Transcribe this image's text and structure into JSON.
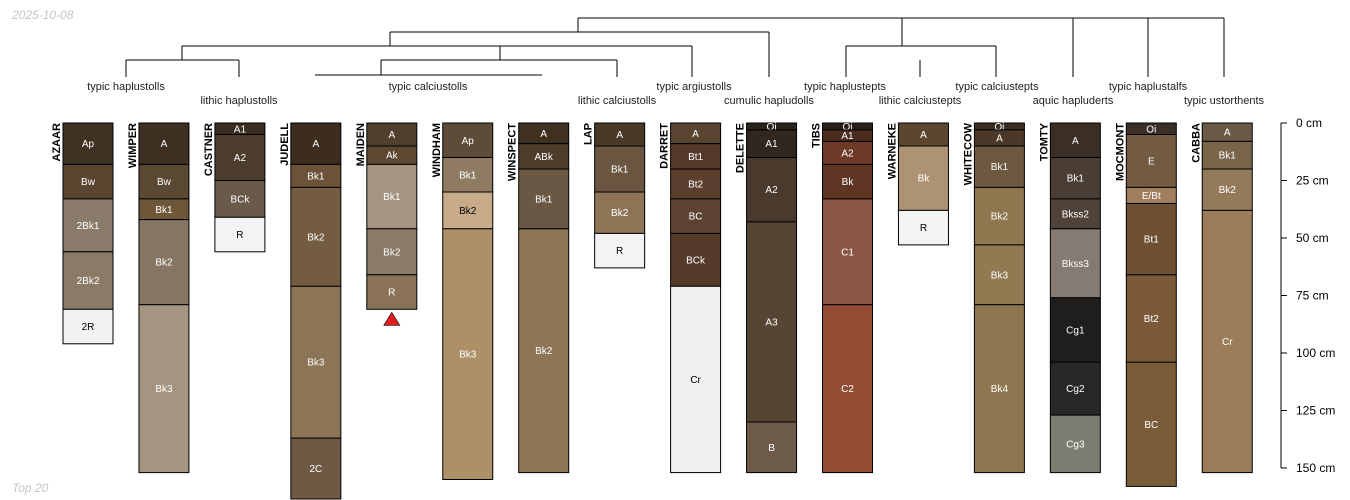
{
  "header": {
    "date": "2025-10-08",
    "footer": "Top 20"
  },
  "depth_axis": {
    "max": 150,
    "unit": "cm",
    "ticks": [
      "0 cm",
      "25 cm",
      "50 cm",
      "75 cm",
      "100 cm",
      "125 cm",
      "150 cm"
    ]
  },
  "taxa": [
    "typic haplustolls",
    "lithic haplustolls",
    "typic calciustolls",
    "lithic calciustolls",
    "typic argiustolls",
    "cumulic hapludolls",
    "typic haplustepts",
    "lithic calciustepts",
    "typic calciustepts",
    "aquic hapluderts",
    "typic haplustalfs",
    "typic ustorthents"
  ],
  "profiles": [
    {
      "name": "AZAAR",
      "horizons": [
        {
          "name": "Ap",
          "top": 0,
          "bottom": 18,
          "color": "#3f3222"
        },
        {
          "name": "Bw",
          "top": 18,
          "bottom": 33,
          "color": "#5a4630"
        },
        {
          "name": "2Bk1",
          "top": 33,
          "bottom": 56,
          "color": "#8b7b6a"
        },
        {
          "name": "2Bk2",
          "top": 56,
          "bottom": 81,
          "color": "#8a7a66"
        },
        {
          "name": "2R",
          "top": 81,
          "bottom": 96,
          "color": "#f2f2f2"
        }
      ]
    },
    {
      "name": "WIMPER",
      "horizons": [
        {
          "name": "A",
          "top": 0,
          "bottom": 18,
          "color": "#3d2f21"
        },
        {
          "name": "Bw",
          "top": 18,
          "bottom": 33,
          "color": "#5a4833"
        },
        {
          "name": "Bk1",
          "top": 33,
          "bottom": 42,
          "color": "#6e5638"
        },
        {
          "name": "Bk2",
          "top": 42,
          "bottom": 79,
          "color": "#857562"
        },
        {
          "name": "Bk3",
          "top": 79,
          "bottom": 152,
          "color": "#a49480"
        }
      ]
    },
    {
      "name": "CASTNER",
      "horizons": [
        {
          "name": "A1",
          "top": 0,
          "bottom": 5,
          "color": "#3a2c20"
        },
        {
          "name": "A2",
          "top": 5,
          "bottom": 25,
          "color": "#4c3c2c"
        },
        {
          "name": "BCk",
          "top": 25,
          "bottom": 41,
          "color": "#6a5a49"
        },
        {
          "name": "R",
          "top": 41,
          "bottom": 56,
          "color": "#f3f3f3"
        }
      ]
    },
    {
      "name": "JUDELL",
      "horizons": [
        {
          "name": "A",
          "top": 0,
          "bottom": 18,
          "color": "#3d2d1f"
        },
        {
          "name": "Bk1",
          "top": 18,
          "bottom": 28,
          "color": "#6b5238"
        },
        {
          "name": "Bk2",
          "top": 28,
          "bottom": 71,
          "color": "#745c40"
        },
        {
          "name": "Bk3",
          "top": 71,
          "bottom": 137,
          "color": "#8c7557"
        },
        {
          "name": "2C",
          "top": 137,
          "bottom": 165,
          "color": "#6e5a44"
        }
      ]
    },
    {
      "name": "MAIDEN",
      "truncated": true,
      "horizons": [
        {
          "name": "A",
          "top": 0,
          "bottom": 10,
          "color": "#503f2c"
        },
        {
          "name": "Ak",
          "top": 10,
          "bottom": 18,
          "color": "#5d4833"
        },
        {
          "name": "Bk1",
          "top": 18,
          "bottom": 46,
          "color": "#a69482"
        },
        {
          "name": "Bk2",
          "top": 46,
          "bottom": 66,
          "color": "#8c7a66"
        },
        {
          "name": "R",
          "top": 66,
          "bottom": 81,
          "color": "#8a7258"
        }
      ]
    },
    {
      "name": "WINDHAM",
      "horizons": [
        {
          "name": "Ap",
          "top": 0,
          "bottom": 15,
          "color": "#5e4c39"
        },
        {
          "name": "Bk1",
          "top": 15,
          "bottom": 30,
          "color": "#8f7b62"
        },
        {
          "name": "Bk2",
          "top": 30,
          "bottom": 46,
          "color": "#c8ac8a"
        },
        {
          "name": "Bk3",
          "top": 46,
          "bottom": 155,
          "color": "#ad9068"
        }
      ]
    },
    {
      "name": "WINSPECT",
      "horizons": [
        {
          "name": "A",
          "top": 0,
          "bottom": 9,
          "color": "#3f3020"
        },
        {
          "name": "ABk",
          "top": 9,
          "bottom": 20,
          "color": "#4e3d2b"
        },
        {
          "name": "Bk1",
          "top": 20,
          "bottom": 46,
          "color": "#6b5844"
        },
        {
          "name": "Bk2",
          "top": 46,
          "bottom": 152,
          "color": "#8d7558"
        }
      ]
    },
    {
      "name": "LAP",
      "horizons": [
        {
          "name": "A",
          "top": 0,
          "bottom": 10,
          "color": "#4a3927"
        },
        {
          "name": "Bk1",
          "top": 10,
          "bottom": 30,
          "color": "#6a5640"
        },
        {
          "name": "Bk2",
          "top": 30,
          "bottom": 48,
          "color": "#8d7457"
        },
        {
          "name": "R",
          "top": 48,
          "bottom": 63,
          "color": "#f3f3f3"
        }
      ]
    },
    {
      "name": "DARRET",
      "horizons": [
        {
          "name": "A",
          "top": 0,
          "bottom": 9,
          "color": "#5a4432"
        },
        {
          "name": "Bt1",
          "top": 9,
          "bottom": 20,
          "color": "#54392a"
        },
        {
          "name": "Bt2",
          "top": 20,
          "bottom": 33,
          "color": "#5b3e2d"
        },
        {
          "name": "BC",
          "top": 33,
          "bottom": 48,
          "color": "#5e4332"
        },
        {
          "name": "BCk",
          "top": 48,
          "bottom": 71,
          "color": "#553a2a"
        },
        {
          "name": "Cr",
          "top": 71,
          "bottom": 152,
          "color": "#f0f0f0"
        }
      ]
    },
    {
      "name": "DELETTE",
      "horizons": [
        {
          "name": "Oi",
          "top": 0,
          "bottom": 3,
          "color": "#2a241f"
        },
        {
          "name": "A1",
          "top": 3,
          "bottom": 15,
          "color": "#2f2720"
        },
        {
          "name": "A2",
          "top": 15,
          "bottom": 43,
          "color": "#4a3a2e"
        },
        {
          "name": "A3",
          "top": 43,
          "bottom": 130,
          "color": "#574534"
        },
        {
          "name": "B",
          "top": 130,
          "bottom": 152,
          "color": "#6e5a48"
        }
      ]
    },
    {
      "name": "TIBS",
      "horizons": [
        {
          "name": "Oi",
          "top": 0,
          "bottom": 3,
          "color": "#2b2018"
        },
        {
          "name": "A1",
          "top": 3,
          "bottom": 8,
          "color": "#4a2d20"
        },
        {
          "name": "A2",
          "top": 8,
          "bottom": 18,
          "color": "#6e3a28"
        },
        {
          "name": "Bk",
          "top": 18,
          "bottom": 33,
          "color": "#5e3422"
        },
        {
          "name": "C1",
          "top": 33,
          "bottom": 79,
          "color": "#8a5543"
        },
        {
          "name": "C2",
          "top": 79,
          "bottom": 152,
          "color": "#924c34"
        }
      ]
    },
    {
      "name": "WARNEKE",
      "horizons": [
        {
          "name": "A",
          "top": 0,
          "bottom": 10,
          "color": "#5c4630"
        },
        {
          "name": "Bk",
          "top": 10,
          "bottom": 38,
          "color": "#ad9374"
        },
        {
          "name": "R",
          "top": 38,
          "bottom": 53,
          "color": "#f3f3f3"
        }
      ]
    },
    {
      "name": "WHITECOW",
      "horizons": [
        {
          "name": "Oi",
          "top": 0,
          "bottom": 3,
          "color": "#3a2c20"
        },
        {
          "name": "A",
          "top": 3,
          "bottom": 10,
          "color": "#4b3828"
        },
        {
          "name": "Bk1",
          "top": 10,
          "bottom": 28,
          "color": "#6d5840"
        },
        {
          "name": "Bk2",
          "top": 28,
          "bottom": 53,
          "color": "#8f7750"
        },
        {
          "name": "Bk3",
          "top": 53,
          "bottom": 79,
          "color": "#917a52"
        },
        {
          "name": "Bk4",
          "top": 79,
          "bottom": 152,
          "color": "#8d7650"
        }
      ]
    },
    {
      "name": "TOMTY",
      "horizons": [
        {
          "name": "A",
          "top": 0,
          "bottom": 15,
          "color": "#3a2e25"
        },
        {
          "name": "Bk1",
          "top": 15,
          "bottom": 33,
          "color": "#4a3e34"
        },
        {
          "name": "Bkss2",
          "top": 33,
          "bottom": 46,
          "color": "#4f4339"
        },
        {
          "name": "Bkss3",
          "top": 46,
          "bottom": 76,
          "color": "#857b72"
        },
        {
          "name": "Cg1",
          "top": 76,
          "bottom": 104,
          "color": "#1f1e1c"
        },
        {
          "name": "Cg2",
          "top": 104,
          "bottom": 127,
          "color": "#292826"
        },
        {
          "name": "Cg3",
          "top": 127,
          "bottom": 152,
          "color": "#7c7c70"
        }
      ]
    },
    {
      "name": "MOCMONT",
      "horizons": [
        {
          "name": "Oi",
          "top": 0,
          "bottom": 5,
          "color": "#3a2f27"
        },
        {
          "name": "E",
          "top": 5,
          "bottom": 28,
          "color": "#735b42"
        },
        {
          "name": "E/Bt",
          "top": 28,
          "bottom": 35,
          "color": "#a27f5c"
        },
        {
          "name": "Bt1",
          "top": 35,
          "bottom": 66,
          "color": "#6e5132"
        },
        {
          "name": "Bt2",
          "top": 66,
          "bottom": 104,
          "color": "#7a5a38"
        },
        {
          "name": "BC",
          "top": 104,
          "bottom": 158,
          "color": "#7a5c38"
        }
      ]
    },
    {
      "name": "CABBA",
      "horizons": [
        {
          "name": "A",
          "top": 0,
          "bottom": 8,
          "color": "#6a5a46"
        },
        {
          "name": "Bk1",
          "top": 8,
          "bottom": 20,
          "color": "#7a6549"
        },
        {
          "name": "Bk2",
          "top": 20,
          "bottom": 38,
          "color": "#937a5a"
        },
        {
          "name": "Cr",
          "top": 38,
          "bottom": 152,
          "color": "#9c7d5a"
        }
      ]
    }
  ],
  "colors": {
    "line": "#000000",
    "truncation_marker": "#e41a1c",
    "corner_text": "#c4c4c4"
  }
}
